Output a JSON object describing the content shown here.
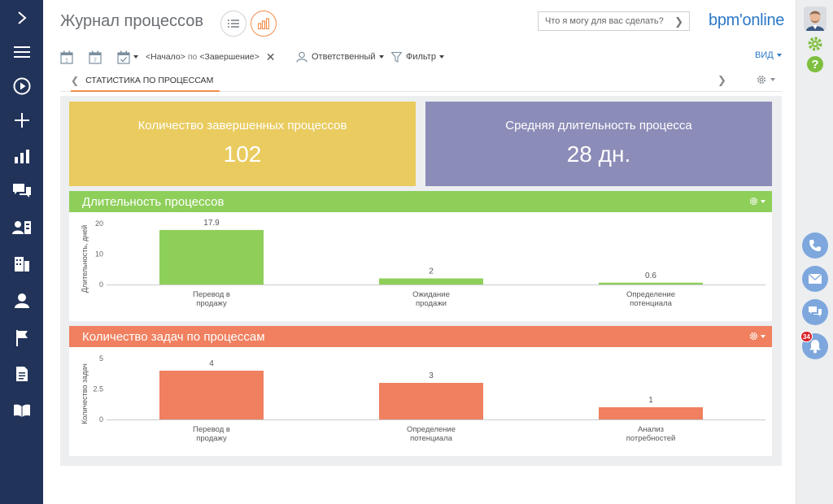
{
  "header": {
    "title": "Журнал процессов",
    "search_placeholder": "Что я могу для вас сделать?",
    "logo": "bpm'online"
  },
  "toolbar": {
    "period_start": "<Начало>",
    "period_sep": "по",
    "period_end": "<Завершение>",
    "owner_label": "Ответственный",
    "filter_label": "Фильтр",
    "view_label": "ВИД"
  },
  "tab": {
    "label": "СТАТИСТИКА ПО ПРОЦЕССАМ"
  },
  "kpis": [
    {
      "label": "Количество завершенных процессов",
      "value": "102",
      "color": "#e9cb5f"
    },
    {
      "label": "Средняя длительность процесса",
      "value": "28 дн.",
      "color": "#8c8cb8"
    }
  ],
  "rightbar": {
    "notification_count": "34"
  },
  "colors": {
    "sidebar": "#22335a",
    "accent": "#f28e4c",
    "green": "#8ecf5a",
    "salmon": "#f0805f"
  },
  "chart_data": [
    {
      "type": "bar",
      "title": "Длительность процессов",
      "ylabel": "Длительность, дней",
      "xlabel": "",
      "ylim": [
        0,
        20
      ],
      "yticks": [
        "20",
        "10",
        "0"
      ],
      "color": "#8ecf5a",
      "categories": [
        [
          "Перевод в",
          "продажу"
        ],
        [
          "Ожидание",
          "продажи"
        ],
        [
          "Определение",
          "потенциала"
        ]
      ],
      "values": [
        17.9,
        2,
        0.6
      ],
      "value_labels": [
        "17.9",
        "2",
        "0.6"
      ]
    },
    {
      "type": "bar",
      "title": "Количество задач по процессам",
      "ylabel": "Количество задач",
      "xlabel": "",
      "ylim": [
        0,
        5
      ],
      "yticks": [
        "5",
        "2.5",
        "0"
      ],
      "color": "#f0805f",
      "categories": [
        [
          "Перевод в",
          "продажу"
        ],
        [
          "Определение",
          "потенциала"
        ],
        [
          "Анализ",
          "потребностей"
        ]
      ],
      "values": [
        4,
        3,
        1
      ],
      "value_labels": [
        "4",
        "3",
        "1"
      ]
    }
  ]
}
